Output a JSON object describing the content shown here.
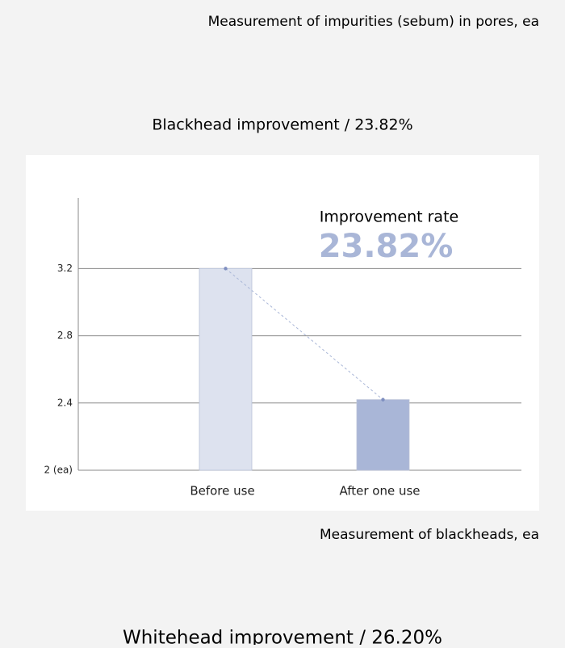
{
  "header": {
    "caption": "Measurement of impurities (sebum) in pores, ea"
  },
  "chart_data": {
    "type": "bar",
    "title": "Blackhead improvement / 23.82%",
    "categories": [
      "Before use",
      "After one use"
    ],
    "values": [
      3.2,
      2.42
    ],
    "colors": [
      "#dde2ef",
      "#a9b6d7"
    ],
    "ylim": [
      2,
      3.62
    ],
    "yticks": [
      {
        "value": 2,
        "label": "2 (ea)"
      },
      2.4,
      2.8,
      3.2
    ],
    "grid": true,
    "connector": true,
    "annotations": [
      "Improvement rate",
      "23.82%"
    ],
    "x_label": "Measurement of blackheads, ea"
  },
  "next_section": {
    "title": "Whitehead improvement / 26.20%"
  }
}
